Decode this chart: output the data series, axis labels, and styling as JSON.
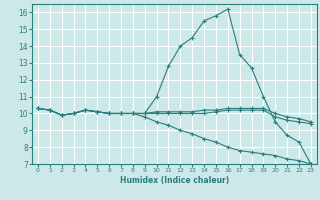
{
  "background_color": "#cce8e8",
  "grid_color": "#ffffff",
  "line_color": "#2d7d7d",
  "xlabel": "Humidex (Indice chaleur)",
  "xlim": [
    -0.5,
    23.5
  ],
  "ylim": [
    7,
    16.5
  ],
  "yticks": [
    7,
    8,
    9,
    10,
    11,
    12,
    13,
    14,
    15,
    16
  ],
  "xticks": [
    0,
    1,
    2,
    3,
    4,
    5,
    6,
    7,
    8,
    9,
    10,
    11,
    12,
    13,
    14,
    15,
    16,
    17,
    18,
    19,
    20,
    21,
    22,
    23
  ],
  "series": [
    {
      "x": [
        0,
        1,
        2,
        3,
        4,
        5,
        6,
        7,
        8,
        9,
        10,
        11,
        12,
        13,
        14,
        15,
        16,
        17,
        18,
        19,
        20,
        21,
        22,
        23
      ],
      "y": [
        10.3,
        10.2,
        9.9,
        10.0,
        10.2,
        10.1,
        10.0,
        10.0,
        10.0,
        10.0,
        11.0,
        12.8,
        14.0,
        14.5,
        15.5,
        15.8,
        16.2,
        13.5,
        12.7,
        11.0,
        9.5,
        8.7,
        8.3,
        7.0
      ]
    },
    {
      "x": [
        0,
        1,
        2,
        3,
        4,
        5,
        6,
        7,
        8,
        9,
        10,
        11,
        12,
        13,
        14,
        15,
        16,
        17,
        18,
        19,
        20,
        21,
        22,
        23
      ],
      "y": [
        10.3,
        10.2,
        9.9,
        10.0,
        10.2,
        10.1,
        10.0,
        10.0,
        10.0,
        10.0,
        10.0,
        10.0,
        10.0,
        10.0,
        10.0,
        10.1,
        10.2,
        10.2,
        10.2,
        10.2,
        9.8,
        9.6,
        9.5,
        9.4
      ]
    },
    {
      "x": [
        0,
        1,
        2,
        3,
        4,
        5,
        6,
        7,
        8,
        9,
        10,
        11,
        12,
        13,
        14,
        15,
        16,
        17,
        18,
        19,
        20,
        21,
        22,
        23
      ],
      "y": [
        10.3,
        10.2,
        9.9,
        10.0,
        10.2,
        10.1,
        10.0,
        10.0,
        10.0,
        10.0,
        10.1,
        10.1,
        10.1,
        10.1,
        10.2,
        10.2,
        10.3,
        10.3,
        10.3,
        10.3,
        10.0,
        9.8,
        9.7,
        9.5
      ]
    },
    {
      "x": [
        0,
        1,
        2,
        3,
        4,
        5,
        6,
        7,
        8,
        9,
        10,
        11,
        12,
        13,
        14,
        15,
        16,
        17,
        18,
        19,
        20,
        21,
        22,
        23
      ],
      "y": [
        10.3,
        10.2,
        9.9,
        10.0,
        10.2,
        10.1,
        10.0,
        10.0,
        10.0,
        9.8,
        9.5,
        9.3,
        9.0,
        8.8,
        8.5,
        8.3,
        8.0,
        7.8,
        7.7,
        7.6,
        7.5,
        7.3,
        7.2,
        7.0
      ]
    }
  ]
}
